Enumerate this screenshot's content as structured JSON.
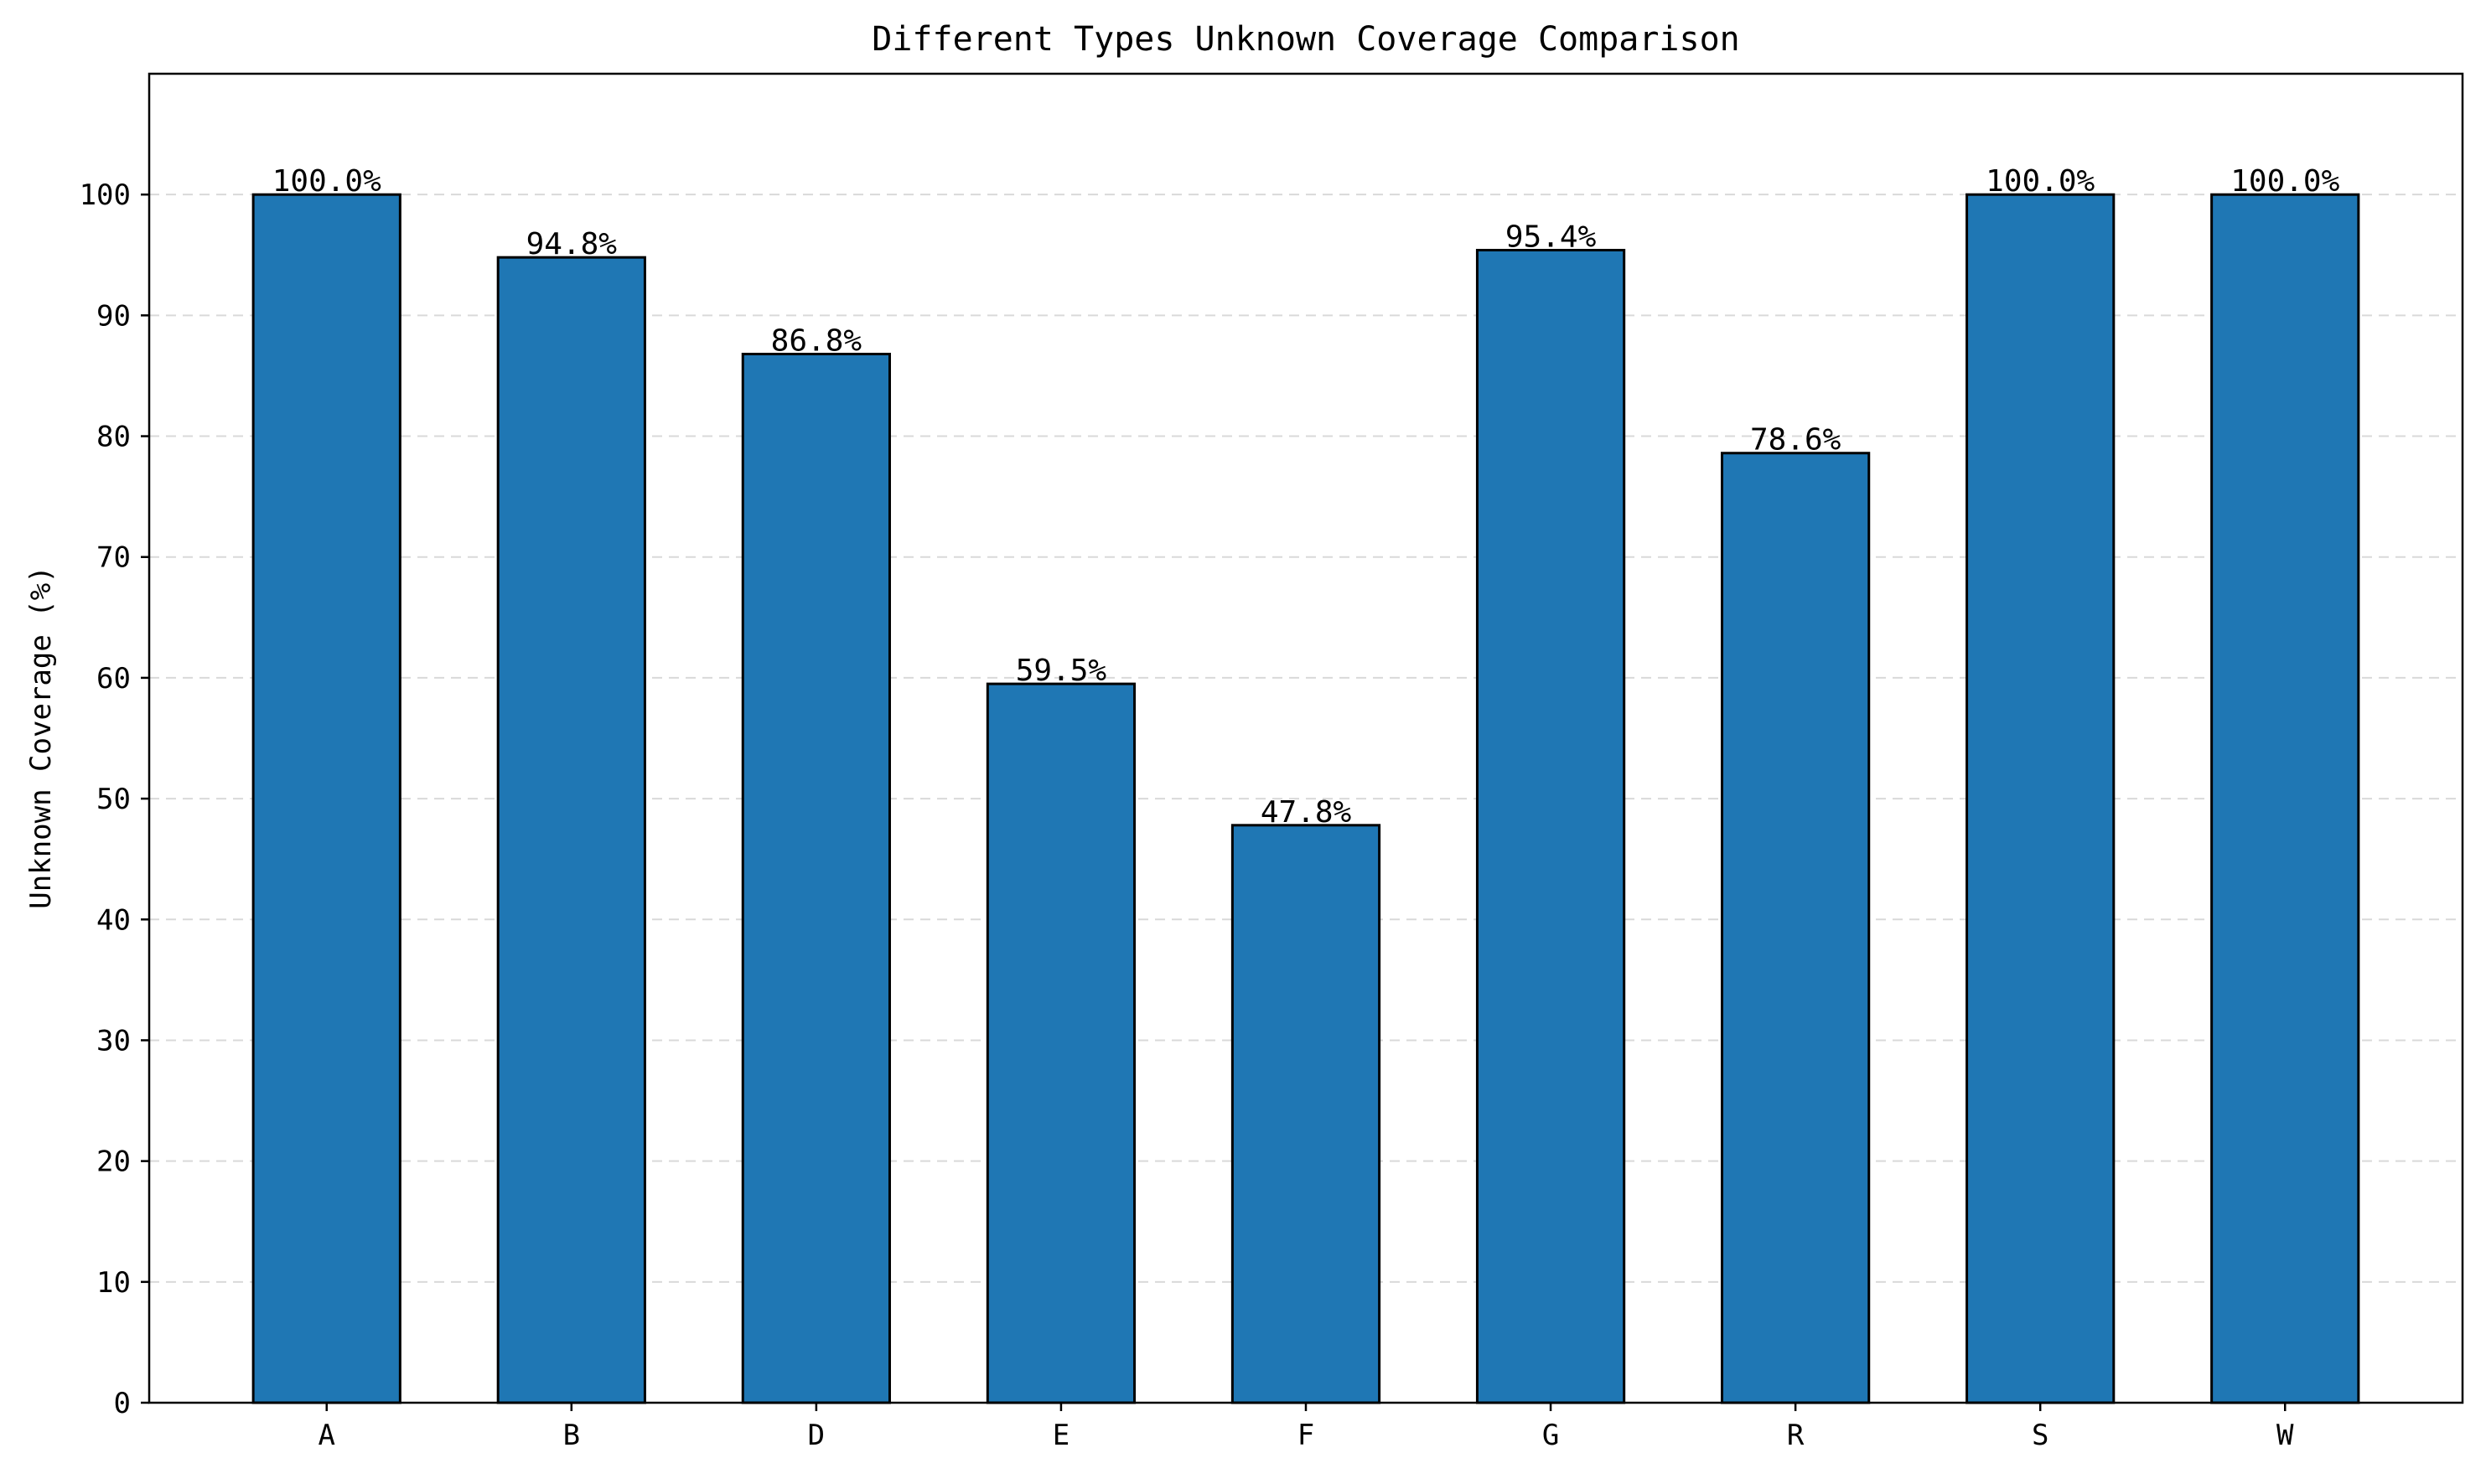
{
  "chart_data": {
    "type": "bar",
    "title": "Different Types Unknown Coverage Comparison",
    "xlabel": "",
    "ylabel": "Unknown Coverage (%)",
    "categories": [
      "A",
      "B",
      "D",
      "E",
      "F",
      "G",
      "R",
      "S",
      "W"
    ],
    "values": [
      100.0,
      94.8,
      86.8,
      59.5,
      47.8,
      95.4,
      78.6,
      100.0,
      100.0
    ],
    "data_labels": [
      "100.0%",
      "94.8%",
      "86.8%",
      "59.5%",
      "47.8%",
      "95.4%",
      "78.6%",
      "100.0%",
      "100.0%"
    ],
    "ylim": [
      0,
      110
    ],
    "yticks": [
      0,
      10,
      20,
      30,
      40,
      50,
      60,
      70,
      80,
      90,
      100
    ],
    "grid": "y-dashed",
    "legend": "none",
    "bar_color": "#1f77b4",
    "edge_color": "#000000"
  }
}
